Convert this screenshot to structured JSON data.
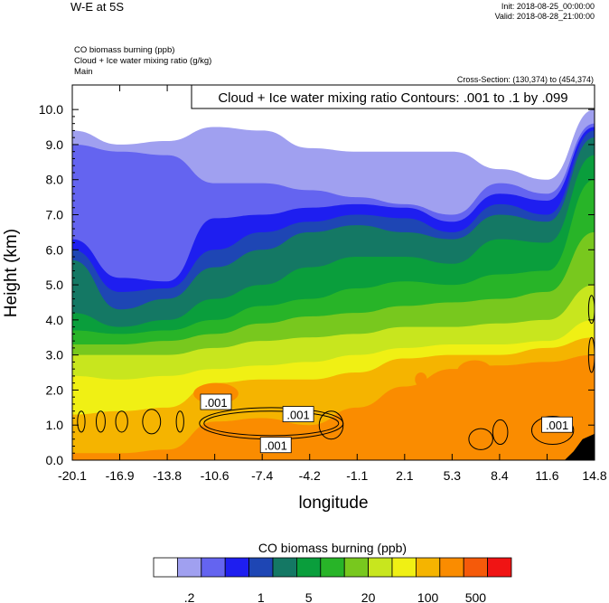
{
  "header": {
    "title": "W-E at 5S",
    "init": "Init: 2018-08-25_00:00:00",
    "valid": "Valid: 2018-08-28_21:00:00",
    "field1": "CO biomass burning   (ppb)",
    "field2": "Cloud + Ice water mixing ratio   (g/kg)",
    "field3": "Main",
    "cross_section": "Cross-Section: (130,374) to (454,374)"
  },
  "chart_data": {
    "type": "heatmap",
    "contour_label": "Cloud + Ice water mixing ratio Contours: .001 to .1 by .099",
    "contour_line_labels": [
      ".001",
      ".001",
      ".001",
      ".001"
    ],
    "xlabel": "longitude",
    "ylabel": "Height (km)",
    "x_ticks": [
      "-20.1",
      "-16.9",
      "-13.8",
      "-10.6",
      "-7.4",
      "-4.2",
      "-1.1",
      "2.1",
      "5.3",
      "8.4",
      "11.6",
      "14.8"
    ],
    "y_ticks": [
      "0.0",
      "1.0",
      "2.0",
      "3.0",
      "4.0",
      "5.0",
      "6.0",
      "7.0",
      "8.0",
      "9.0",
      "10.0"
    ],
    "xlim": [
      -20.1,
      14.8
    ],
    "ylim": [
      0,
      10.7
    ],
    "colorbar": {
      "title": "CO biomass burning  (ppb)",
      "labels": [
        ".2",
        "1",
        "5",
        "20",
        "100",
        "500"
      ],
      "colors": [
        "#ffffff",
        "#a0a0f0",
        "#6464f0",
        "#1e1ef0",
        "#1e46b4",
        "#147864",
        "#0a9e3c",
        "#28b428",
        "#78c81e",
        "#c8e61e",
        "#f0f014",
        "#f5b400",
        "#fa8c00",
        "#f55a0a",
        "#f01414"
      ]
    },
    "layers": [
      {
        "color_index": 1,
        "top_km": [
          9.4,
          9.0,
          9.1,
          9.5,
          9.4,
          8.9,
          8.8,
          8.8,
          8.8,
          8.3,
          8.0,
          10.0
        ]
      },
      {
        "color_index": 2,
        "top_km": [
          9.0,
          8.8,
          8.7,
          7.9,
          7.9,
          7.7,
          7.5,
          7.3,
          7.0,
          7.9,
          7.6,
          9.6
        ]
      },
      {
        "color_index": 3,
        "top_km": [
          6.3,
          5.2,
          5.1,
          6.9,
          7.0,
          7.2,
          7.3,
          7.2,
          6.8,
          7.6,
          7.4,
          9.5
        ]
      },
      {
        "color_index": 4,
        "top_km": [
          6.0,
          4.8,
          4.9,
          6.0,
          6.5,
          6.8,
          7.0,
          6.9,
          6.5,
          7.3,
          7.0,
          9.4
        ]
      },
      {
        "color_index": 5,
        "top_km": [
          5.7,
          4.3,
          4.6,
          5.5,
          6.0,
          6.5,
          6.7,
          6.5,
          6.3,
          7.0,
          6.8,
          9.2
        ]
      },
      {
        "color_index": 6,
        "top_km": [
          4.2,
          3.8,
          4.0,
          4.6,
          5.0,
          5.5,
          5.8,
          5.8,
          5.6,
          6.3,
          6.2,
          8.7
        ]
      },
      {
        "color_index": 7,
        "top_km": [
          3.7,
          3.6,
          3.7,
          4.0,
          4.4,
          4.6,
          4.9,
          5.1,
          5.0,
          5.3,
          5.4,
          8.0
        ]
      },
      {
        "color_index": 8,
        "top_km": [
          3.3,
          3.3,
          3.4,
          3.6,
          3.9,
          4.1,
          4.2,
          4.4,
          4.5,
          4.6,
          4.8,
          6.5
        ]
      },
      {
        "color_index": 9,
        "top_km": [
          3.0,
          3.0,
          3.0,
          3.2,
          3.4,
          3.5,
          3.6,
          3.8,
          3.8,
          3.9,
          4.0,
          5.0
        ]
      },
      {
        "color_index": 10,
        "top_km": [
          2.4,
          2.3,
          2.4,
          2.6,
          2.7,
          2.8,
          3.0,
          3.2,
          3.3,
          3.3,
          3.4,
          4.0
        ]
      },
      {
        "color_index": 11,
        "top_km": [
          1.3,
          1.4,
          1.5,
          2.2,
          2.3,
          2.3,
          2.5,
          2.9,
          3.0,
          3.0,
          3.2,
          3.5
        ]
      },
      {
        "color_index": 12,
        "top_km": [
          0.2,
          0.2,
          0.3,
          1.1,
          1.2,
          1.0,
          1.5,
          2.1,
          2.6,
          2.7,
          2.8,
          3.0
        ]
      }
    ],
    "hotspots": [
      {
        "color_index": 12,
        "cx": -10.5,
        "cy": 1.9,
        "rx": 1.5,
        "ry": 0.3
      },
      {
        "color_index": 12,
        "cx": 6.8,
        "cy": 2.5,
        "rx": 1.2,
        "ry": 0.35
      },
      {
        "color_index": 12,
        "cx": 3.2,
        "cy": 2.3,
        "rx": 0.4,
        "ry": 0.2
      }
    ],
    "contour_rings": [
      {
        "cx": -19.5,
        "cy": 1.1,
        "rx": 0.25,
        "ry": 0.3
      },
      {
        "cx": -18.2,
        "cy": 1.1,
        "rx": 0.3,
        "ry": 0.3
      },
      {
        "cx": -16.8,
        "cy": 1.1,
        "rx": 0.4,
        "ry": 0.3
      },
      {
        "cx": -14.8,
        "cy": 1.1,
        "rx": 0.6,
        "ry": 0.35
      },
      {
        "cx": -12.9,
        "cy": 1.1,
        "rx": 0.25,
        "ry": 0.3
      },
      {
        "cx": -6.8,
        "cy": 1.05,
        "rx": 4.5,
        "ry": 0.35
      },
      {
        "cx": -6.8,
        "cy": 1.05,
        "rx": 4.8,
        "ry": 0.45
      },
      {
        "cx": -2.8,
        "cy": 1.0,
        "rx": 0.8,
        "ry": 0.4
      },
      {
        "cx": 7.2,
        "cy": 0.6,
        "rx": 0.8,
        "ry": 0.3
      },
      {
        "cx": 8.5,
        "cy": 0.8,
        "rx": 0.5,
        "ry": 0.35
      },
      {
        "cx": 12.0,
        "cy": 0.85,
        "rx": 1.4,
        "ry": 0.4
      },
      {
        "cx": 14.6,
        "cy": 3.0,
        "rx": 0.2,
        "ry": 0.5
      },
      {
        "cx": 14.6,
        "cy": 4.3,
        "rx": 0.2,
        "ry": 0.4
      }
    ],
    "terrain_x": [
      12.8,
      13.4,
      14.0,
      14.8,
      14.8
    ],
    "terrain_y": [
      0,
      0.25,
      0.6,
      0.75,
      0
    ]
  }
}
